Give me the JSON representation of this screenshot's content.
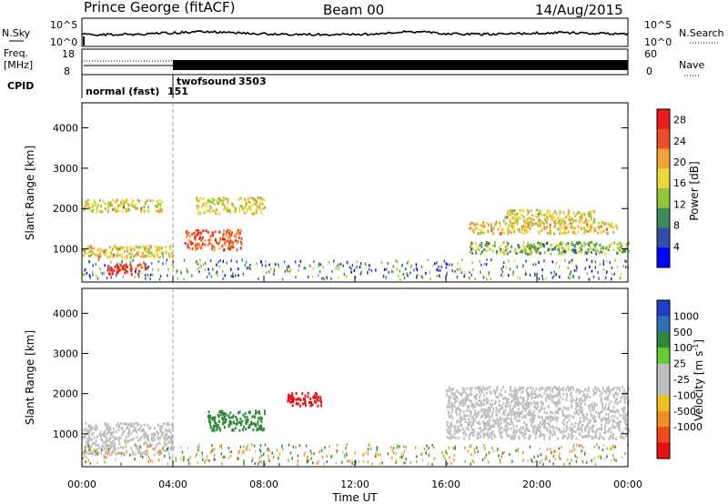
{
  "header": {
    "site": "Prince George (fitACF)",
    "beam": "Beam 00",
    "date": "14/Aug/2015"
  },
  "sky_panel": {
    "left_label": "N.Sky",
    "right_label": "N.Search",
    "left_ticks": [
      "10^5",
      "10^0"
    ],
    "right_ticks": [
      "10^5",
      "10^0"
    ],
    "legend_glyph": "dotted-line"
  },
  "freq_panel": {
    "left_label_1": "Freq.",
    "left_label_2": "[MHz]",
    "right_label": "Nave",
    "left_ticks": [
      "18",
      "8"
    ],
    "right_ticks": [
      "60",
      "0"
    ],
    "legend_glyph": "dotted-line"
  },
  "cpid_panel": {
    "label": "CPID",
    "modes": [
      {
        "name": "normal (fast)",
        "id": "151",
        "start_hour": 0
      },
      {
        "name": "twofsound",
        "id": "3503",
        "start_hour": 4
      }
    ]
  },
  "x_axis": {
    "label": "Time UT",
    "ticks": [
      "00:00",
      "04:00",
      "08:00",
      "12:00",
      "16:00",
      "20:00",
      "00:00"
    ]
  },
  "colors": {
    "power_scale": [
      "#0000ff",
      "#2f4fa8",
      "#3a8a5a",
      "#8fc43c",
      "#e8d83a",
      "#f2a23a",
      "#e8502a",
      "#e81c1c"
    ],
    "velocity_scale": [
      "#1f3fc8",
      "#2f6fb8",
      "#2e8a3a",
      "#66cc33",
      "#c0c0c0",
      "#c0c0c0",
      "#f0c020",
      "#f09020",
      "#f04a1a",
      "#e81010"
    ]
  },
  "chart_data": [
    {
      "type": "heatmap",
      "title": "",
      "xlabel": "Time UT",
      "ylabel": "Slant Range [km]",
      "xlim": [
        0,
        24
      ],
      "ylim": [
        180,
        4620
      ],
      "y_ticks": [
        "1000",
        "2000",
        "3000",
        "4000"
      ],
      "colorbar": {
        "label": "Power [dB]",
        "ticks": [
          "4",
          "8",
          "12",
          "16",
          "20",
          "24",
          "28"
        ],
        "range": [
          0,
          30
        ]
      },
      "features": [
        {
          "start_hour": 0,
          "end_hour": 3.5,
          "range_from_km": 1950,
          "range_to_km": 2250,
          "power_db": 16
        },
        {
          "start_hour": 0,
          "end_hour": 4,
          "range_from_km": 800,
          "range_to_km": 1100,
          "power_db": 18
        },
        {
          "start_hour": 1,
          "end_hour": 2.8,
          "range_from_km": 400,
          "range_to_km": 650,
          "power_db": 29
        },
        {
          "start_hour": 4.5,
          "end_hour": 7,
          "range_from_km": 1000,
          "range_to_km": 1500,
          "power_db": 24
        },
        {
          "start_hour": 5,
          "end_hour": 8,
          "range_from_km": 1900,
          "range_to_km": 2300,
          "power_db": 16
        },
        {
          "start_hour": 17,
          "end_hour": 23.5,
          "range_from_km": 1400,
          "range_to_km": 1700,
          "power_db": 18
        },
        {
          "start_hour": 18.5,
          "end_hour": 22.5,
          "range_from_km": 1700,
          "range_to_km": 2000,
          "power_db": 16
        },
        {
          "start_hour": 17,
          "end_hour": 24,
          "range_from_km": 900,
          "range_to_km": 1200,
          "power_db": 12
        }
      ]
    },
    {
      "type": "heatmap",
      "title": "",
      "xlabel": "Time UT",
      "ylabel": "Slant Range [km]",
      "xlim": [
        0,
        24
      ],
      "ylim": [
        180,
        4620
      ],
      "y_ticks": [
        "1000",
        "2000",
        "3000",
        "4000"
      ],
      "colorbar": {
        "label": "Velocity [m s-1]",
        "label_text": "Velocity",
        "label_unit": "[m s",
        "label_exp": "-1",
        "label_close": "]",
        "ticks": [
          "1000",
          "500",
          "100",
          "25",
          "-25",
          "-100",
          "-500",
          "-1000"
        ]
      },
      "features": [
        {
          "start_hour": 5.5,
          "end_hour": 8,
          "range_from_km": 1100,
          "range_to_km": 1600,
          "velocity_mps": 100
        },
        {
          "start_hour": 9,
          "end_hour": 10.5,
          "range_from_km": 1700,
          "range_to_km": 2050,
          "velocity_mps": -800
        },
        {
          "start_hour": 0,
          "end_hour": 4,
          "range_from_km": 500,
          "range_to_km": 1300,
          "velocity_mps": 0
        },
        {
          "start_hour": 16,
          "end_hour": 24,
          "range_from_km": 900,
          "range_to_km": 2200,
          "velocity_mps": 0
        }
      ]
    }
  ]
}
